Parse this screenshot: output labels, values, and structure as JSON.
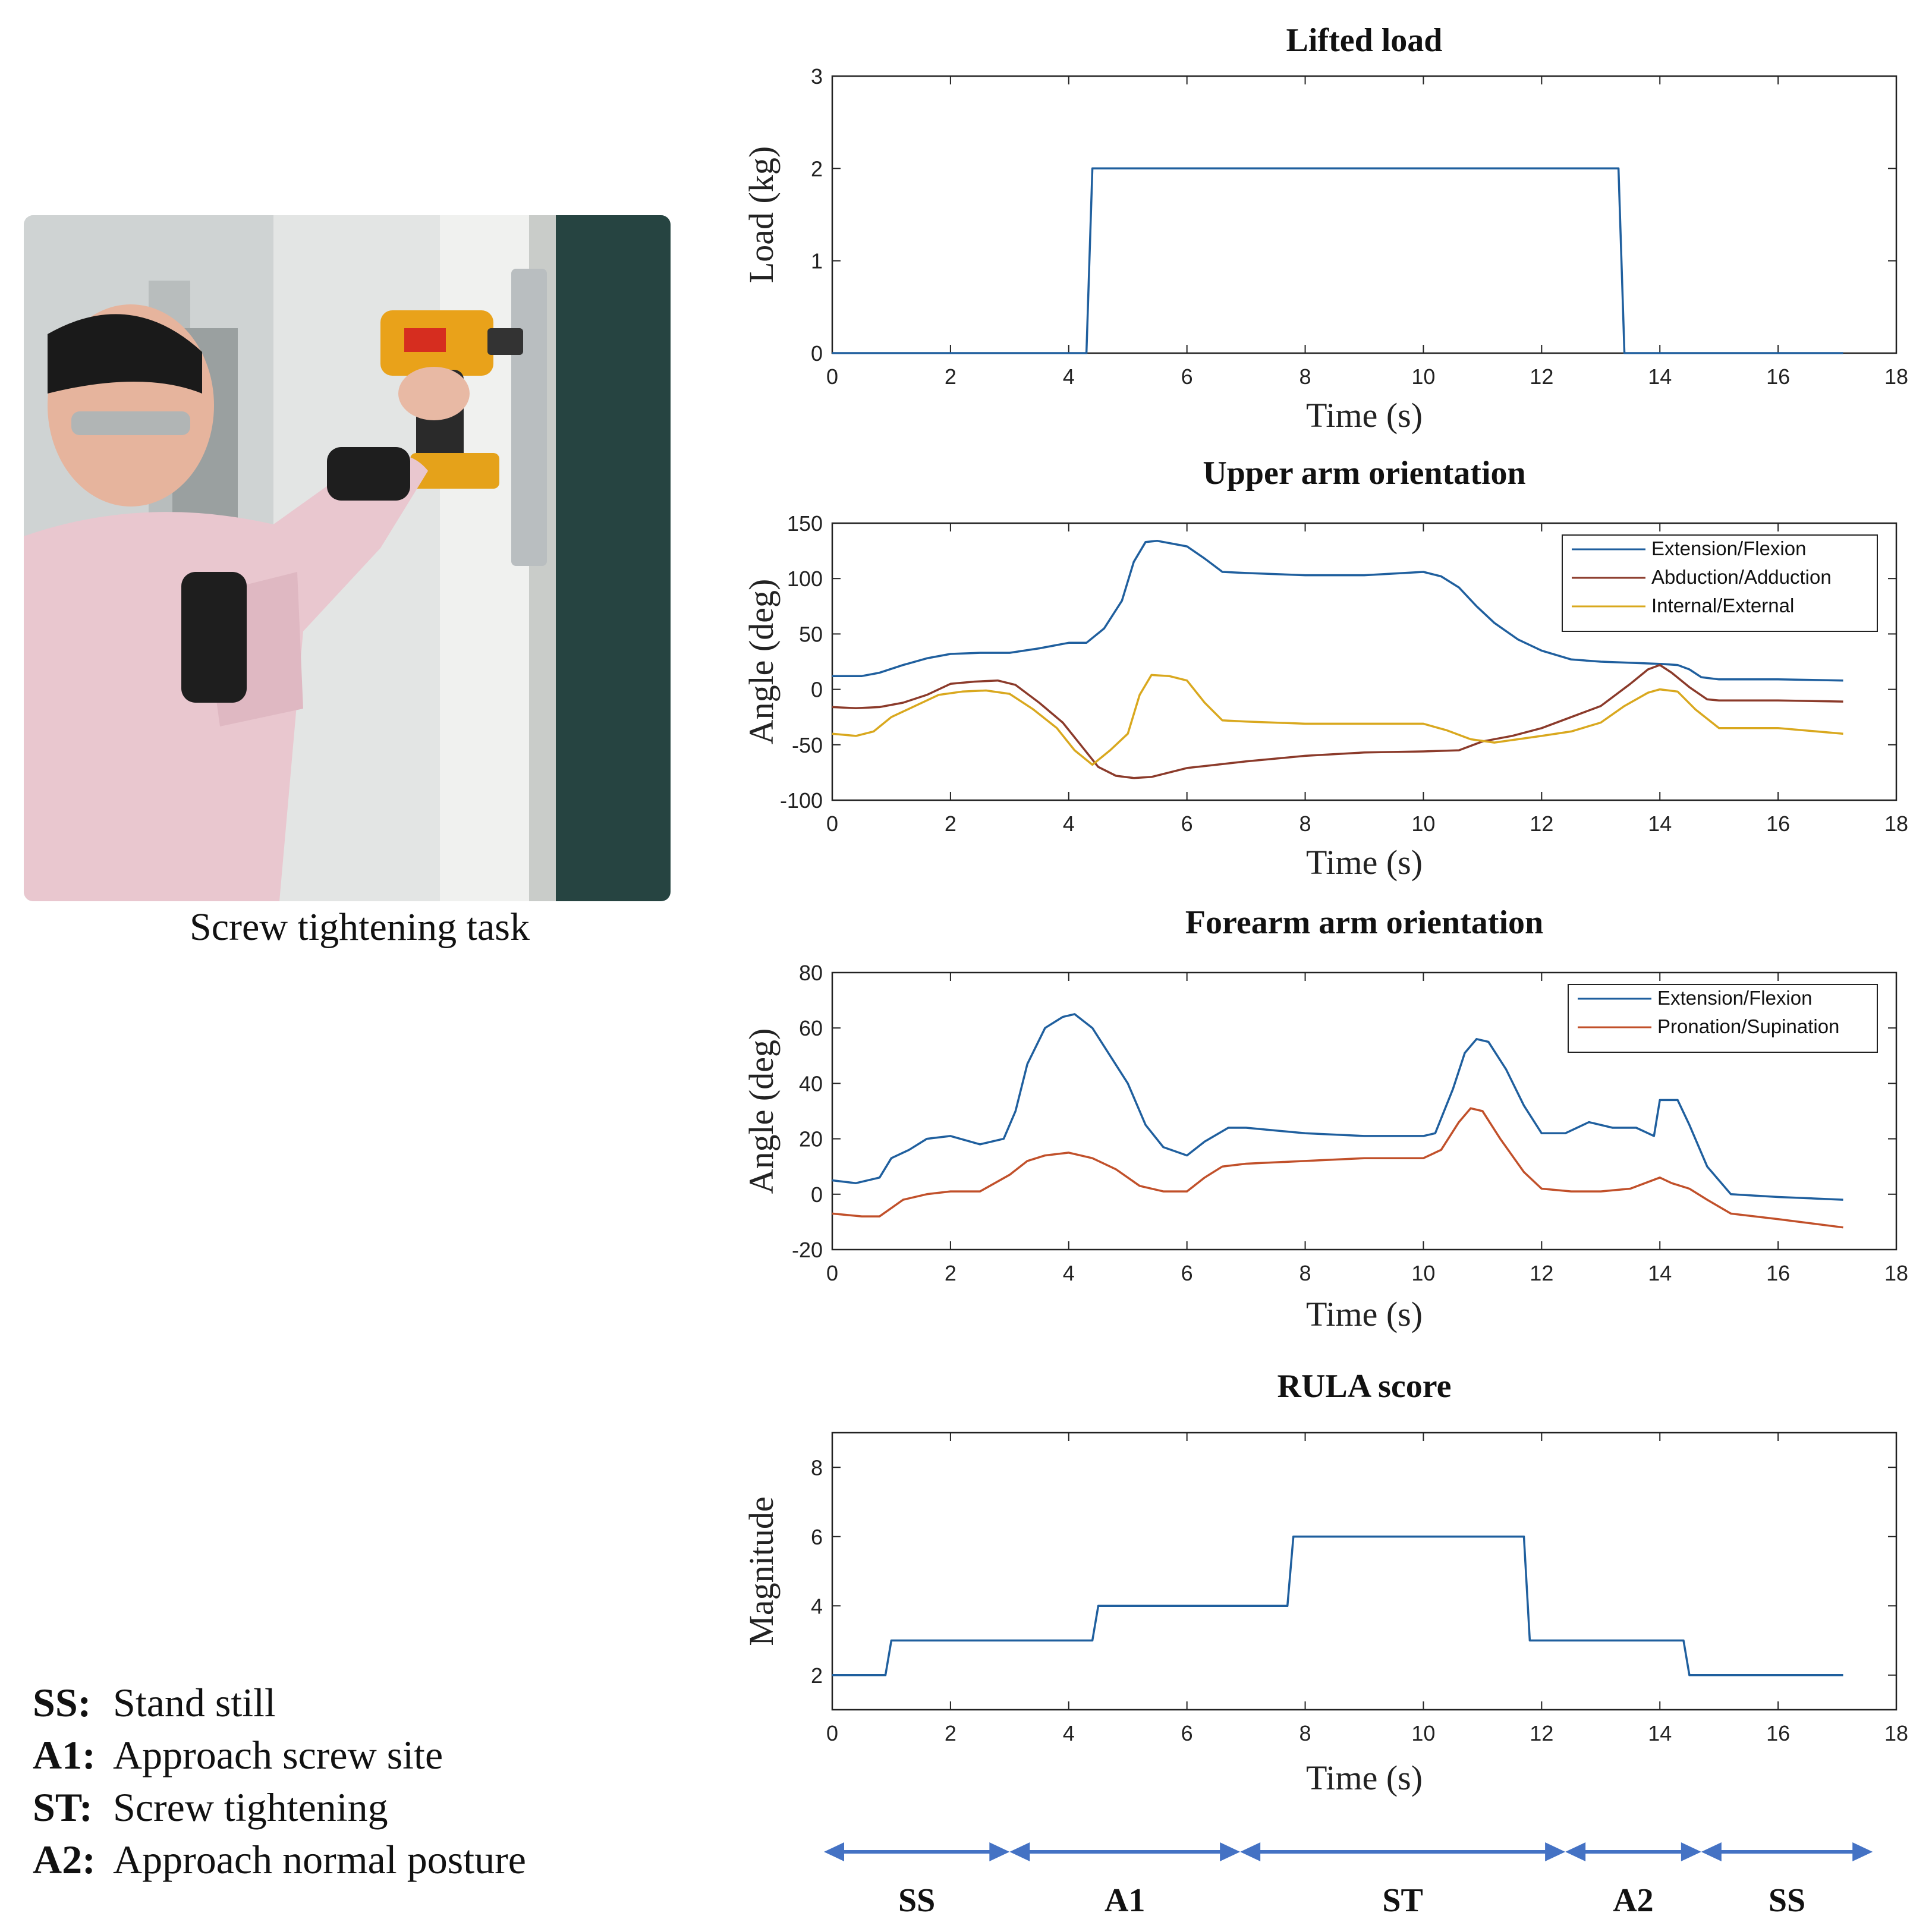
{
  "photo": {
    "caption": "Screw tightening task"
  },
  "legend": [
    {
      "code": "SS:",
      "desc": "Stand still"
    },
    {
      "code": "A1:",
      "desc": "Approach screw site"
    },
    {
      "code": "ST:",
      "desc": "Screw tightening"
    },
    {
      "code": "A2:",
      "desc": "Approach normal posture"
    }
  ],
  "colors": {
    "blue": "#1f5f9e",
    "orange": "#c1502a",
    "yellow": "#d9a81e",
    "arrow": "#4472c4"
  },
  "chart_data": [
    {
      "type": "line",
      "title": "Lifted load",
      "xlabel": "Time (s)",
      "ylabel": "Load (kg)",
      "xlim": [
        0,
        18
      ],
      "ylim": [
        0,
        3
      ],
      "xticks": [
        0,
        2,
        4,
        6,
        8,
        10,
        12,
        14,
        16,
        18
      ],
      "yticks": [
        0,
        1,
        2,
        3
      ],
      "series": [
        {
          "name": "Load",
          "color": "#1f5f9e",
          "x": [
            0,
            4.3,
            4.4,
            13.3,
            13.4,
            17.1
          ],
          "y": [
            0,
            0,
            2,
            2,
            0,
            0
          ]
        }
      ]
    },
    {
      "type": "line",
      "title": "Upper arm orientation",
      "xlabel": "Time (s)",
      "ylabel": "Angle (deg)",
      "xlim": [
        0,
        18
      ],
      "ylim": [
        -100,
        150
      ],
      "xticks": [
        0,
        2,
        4,
        6,
        8,
        10,
        12,
        14,
        16,
        18
      ],
      "yticks": [
        -100,
        -50,
        0,
        50,
        100,
        150
      ],
      "legend_position": "top-right",
      "series": [
        {
          "name": "Extension/Flexion",
          "color": "#1f5f9e",
          "x": [
            0,
            0.5,
            0.8,
            1.2,
            1.6,
            2.0,
            2.5,
            3.0,
            3.5,
            4.0,
            4.3,
            4.6,
            4.9,
            5.1,
            5.3,
            5.5,
            5.8,
            6.0,
            6.3,
            6.6,
            7.0,
            8.0,
            9.0,
            10.0,
            10.3,
            10.6,
            10.9,
            11.2,
            11.6,
            12.0,
            12.5,
            13.0,
            13.5,
            14.0,
            14.3,
            14.5,
            14.7,
            15.0,
            16.0,
            17.1
          ],
          "y": [
            12,
            12,
            15,
            22,
            28,
            32,
            33,
            33,
            37,
            42,
            42,
            55,
            80,
            115,
            133,
            134,
            131,
            129,
            118,
            106,
            105,
            103,
            103,
            106,
            102,
            92,
            75,
            60,
            45,
            35,
            27,
            25,
            24,
            23,
            22,
            18,
            11,
            9,
            9,
            8
          ]
        },
        {
          "name": "Abduction/Adduction",
          "color": "#8b3a2a",
          "x": [
            0,
            0.4,
            0.8,
            1.2,
            1.6,
            2.0,
            2.4,
            2.8,
            3.1,
            3.5,
            3.9,
            4.2,
            4.5,
            4.8,
            5.1,
            5.4,
            5.7,
            6.0,
            6.5,
            7.0,
            8.0,
            9.0,
            10.0,
            10.6,
            11.0,
            11.5,
            12.0,
            12.5,
            13.0,
            13.5,
            13.8,
            14.0,
            14.2,
            14.5,
            14.8,
            15.0,
            16.0,
            17.1
          ],
          "y": [
            -16,
            -17,
            -16,
            -12,
            -5,
            5,
            7,
            8,
            4,
            -12,
            -30,
            -50,
            -70,
            -78,
            -80,
            -79,
            -75,
            -71,
            -68,
            -65,
            -60,
            -57,
            -56,
            -55,
            -47,
            -42,
            -35,
            -25,
            -15,
            5,
            18,
            22,
            15,
            2,
            -9,
            -10,
            -10,
            -11
          ]
        },
        {
          "name": "Internal/External",
          "color": "#d9a81e",
          "x": [
            0,
            0.4,
            0.7,
            1.0,
            1.4,
            1.8,
            2.2,
            2.6,
            3.0,
            3.4,
            3.8,
            4.1,
            4.4,
            4.7,
            5.0,
            5.2,
            5.4,
            5.7,
            6.0,
            6.3,
            6.6,
            7.0,
            8.0,
            9.0,
            10.0,
            10.4,
            10.8,
            11.2,
            11.6,
            12.0,
            12.5,
            13.0,
            13.4,
            13.8,
            14.0,
            14.3,
            14.6,
            15.0,
            16.0,
            17.1
          ],
          "y": [
            -40,
            -42,
            -38,
            -25,
            -15,
            -5,
            -2,
            -1,
            -4,
            -18,
            -35,
            -55,
            -68,
            -55,
            -40,
            -5,
            13,
            12,
            8,
            -12,
            -28,
            -29,
            -31,
            -31,
            -31,
            -37,
            -45,
            -48,
            -45,
            -42,
            -38,
            -30,
            -15,
            -3,
            0,
            -2,
            -18,
            -35,
            -35,
            -40
          ]
        }
      ]
    },
    {
      "type": "line",
      "title": "Forearm arm orientation",
      "xlabel": "Time (s)",
      "ylabel": "Angle (deg)",
      "xlim": [
        0,
        18
      ],
      "ylim": [
        -20,
        80
      ],
      "xticks": [
        0,
        2,
        4,
        6,
        8,
        10,
        12,
        14,
        16,
        18
      ],
      "yticks": [
        -20,
        0,
        20,
        40,
        60,
        80
      ],
      "legend_position": "top-right",
      "series": [
        {
          "name": "Extension/Flexion",
          "color": "#1f5f9e",
          "x": [
            0,
            0.4,
            0.8,
            1.0,
            1.3,
            1.6,
            2.0,
            2.5,
            2.9,
            3.1,
            3.3,
            3.6,
            3.9,
            4.1,
            4.4,
            4.7,
            5.0,
            5.3,
            5.6,
            6.0,
            6.3,
            6.7,
            7.0,
            8.0,
            9.0,
            10.0,
            10.2,
            10.5,
            10.7,
            10.9,
            11.1,
            11.4,
            11.7,
            12.0,
            12.4,
            12.8,
            13.2,
            13.6,
            13.9,
            14.0,
            14.3,
            14.5,
            14.8,
            15.2,
            16.0,
            17.1
          ],
          "y": [
            5,
            4,
            6,
            13,
            16,
            20,
            21,
            18,
            20,
            30,
            47,
            60,
            64,
            65,
            60,
            50,
            40,
            25,
            17,
            14,
            19,
            24,
            24,
            22,
            21,
            21,
            22,
            38,
            51,
            56,
            55,
            45,
            32,
            22,
            22,
            26,
            24,
            24,
            21,
            34,
            34,
            25,
            10,
            0,
            -1,
            -2
          ]
        },
        {
          "name": "Pronation/Supination",
          "color": "#c1502a",
          "x": [
            0,
            0.5,
            0.8,
            1.2,
            1.6,
            2.0,
            2.5,
            3.0,
            3.3,
            3.6,
            4.0,
            4.4,
            4.8,
            5.2,
            5.6,
            6.0,
            6.3,
            6.6,
            7.0,
            8.0,
            9.0,
            10.0,
            10.3,
            10.6,
            10.8,
            11.0,
            11.3,
            11.7,
            12.0,
            12.5,
            13.0,
            13.5,
            14.0,
            14.2,
            14.5,
            14.8,
            15.2,
            16.0,
            17.1
          ],
          "y": [
            -7,
            -8,
            -8,
            -2,
            0,
            1,
            1,
            7,
            12,
            14,
            15,
            13,
            9,
            3,
            1,
            1,
            6,
            10,
            11,
            12,
            13,
            13,
            16,
            26,
            31,
            30,
            20,
            8,
            2,
            1,
            1,
            2,
            6,
            4,
            2,
            -2,
            -7,
            -9,
            -12
          ]
        }
      ]
    },
    {
      "type": "line",
      "title": "RULA score",
      "xlabel": "Time (s)",
      "ylabel": "Magnitude",
      "xlim": [
        0,
        18
      ],
      "ylim": [
        1,
        9
      ],
      "xticks": [
        0,
        2,
        4,
        6,
        8,
        10,
        12,
        14,
        16,
        18
      ],
      "yticks": [
        2,
        4,
        6,
        8
      ],
      "series": [
        {
          "name": "RULA",
          "color": "#1f5f9e",
          "x": [
            0,
            0.9,
            1.0,
            4.4,
            4.5,
            7.7,
            7.8,
            11.7,
            11.8,
            14.4,
            14.5,
            17.1
          ],
          "y": [
            2,
            2,
            3,
            3,
            4,
            4,
            6,
            6,
            3,
            3,
            2,
            2
          ]
        }
      ]
    }
  ],
  "phases": [
    {
      "label": "SS",
      "start": 0,
      "end": 3.0
    },
    {
      "label": "A1",
      "start": 3.0,
      "end": 6.9
    },
    {
      "label": "ST",
      "start": 6.9,
      "end": 12.4
    },
    {
      "label": "A2",
      "start": 12.4,
      "end": 14.7
    },
    {
      "label": "SS",
      "start": 14.7,
      "end": 17.6
    }
  ]
}
